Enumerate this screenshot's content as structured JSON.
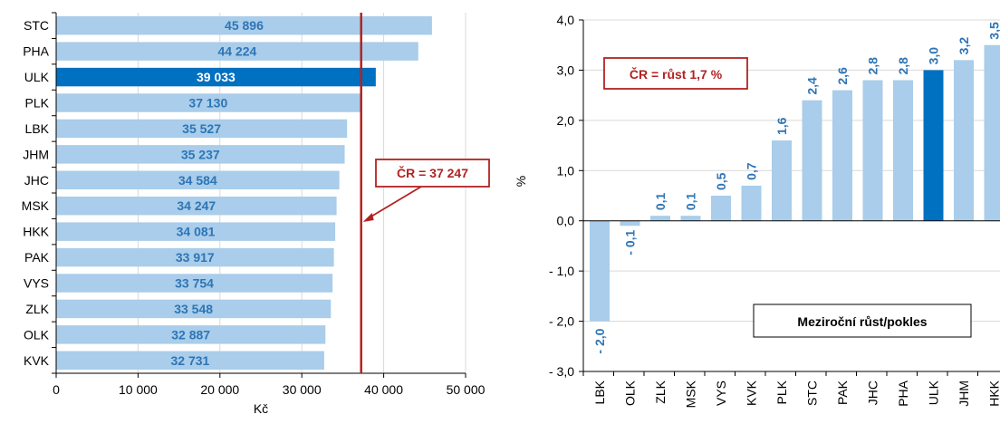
{
  "colors": {
    "bar": "#a9cdea",
    "highlight": "#0070c0",
    "label": "#2e75b6",
    "accent": "#b22222",
    "grid": "#d9d9d9",
    "axis": "#000000"
  },
  "chart_data": [
    {
      "type": "bar",
      "orientation": "horizontal",
      "categories": [
        "STC",
        "PHA",
        "ULK",
        "PLK",
        "LBK",
        "JHM",
        "JHC",
        "MSK",
        "HKK",
        "PAK",
        "VYS",
        "ZLK",
        "OLK",
        "KVK"
      ],
      "values": [
        45896,
        44224,
        39033,
        37130,
        35527,
        35237,
        34584,
        34247,
        34081,
        33917,
        33754,
        33548,
        32887,
        32731
      ],
      "value_labels": [
        "45 896",
        "44 224",
        "39 033",
        "37 130",
        "35 527",
        "35 237",
        "34 584",
        "34 247",
        "34 081",
        "33 917",
        "33 754",
        "33 548",
        "32 887",
        "32 731"
      ],
      "highlight": "ULK",
      "xlabel": "Kč",
      "xlim": [
        0,
        50000
      ],
      "xticks": [
        0,
        10000,
        20000,
        30000,
        40000,
        50000
      ],
      "xtick_labels": [
        "0",
        "10 000",
        "20 000",
        "30 000",
        "40 000",
        "50 000"
      ],
      "grid": "vertical",
      "reference": {
        "value": 37247,
        "label": "ČR = 37 247"
      }
    },
    {
      "type": "bar",
      "orientation": "vertical",
      "categories": [
        "LBK",
        "OLK",
        "ZLK",
        "MSK",
        "VYS",
        "KVK",
        "PLK",
        "STC",
        "PAK",
        "JHC",
        "PHA",
        "ULK",
        "JHM",
        "HKK"
      ],
      "values": [
        -2.0,
        -0.1,
        0.1,
        0.1,
        0.5,
        0.7,
        1.6,
        2.4,
        2.6,
        2.8,
        2.8,
        3.0,
        3.2,
        3.5
      ],
      "value_labels": [
        "- 2,0",
        "- 0,1",
        "0,1",
        "0,1",
        "0,5",
        "0,7",
        "1,6",
        "2,4",
        "2,6",
        "2,8",
        "2,8",
        "3,0",
        "3,2",
        "3,5"
      ],
      "highlight": "ULK",
      "ylabel": "%",
      "ylim": [
        -3.0,
        4.0
      ],
      "yticks": [
        -3,
        -2,
        -1,
        0,
        1,
        2,
        3,
        4
      ],
      "ytick_labels": [
        "- 3,0",
        "- 2,0",
        "- 1,0",
        "0,0",
        "1,0",
        "2,0",
        "3,0",
        "4,0"
      ],
      "grid": "horizontal",
      "annotation": "ČR = růst  1,7 %",
      "legend_box": "Meziroční růst/pokles"
    }
  ]
}
